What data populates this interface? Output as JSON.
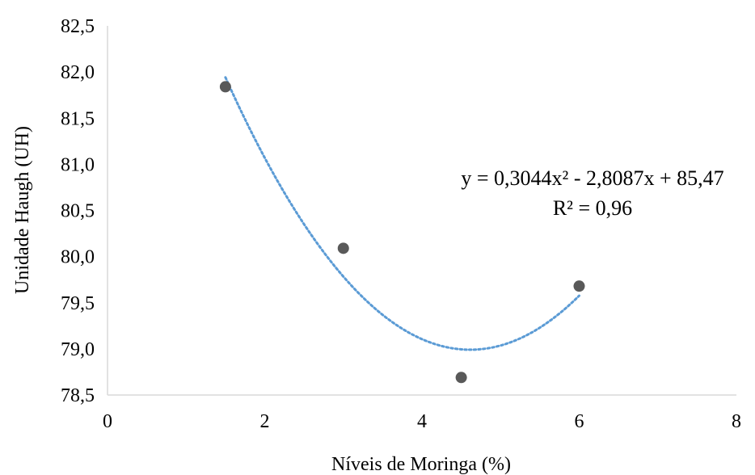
{
  "chart_data": {
    "type": "scatter",
    "title": "",
    "xlabel": "Níveis de Moringa (%)",
    "ylabel": "Unidade Haugh (UH)",
    "xlim": [
      0,
      8
    ],
    "ylim": [
      78.5,
      82.5
    ],
    "x_ticks": [
      "0",
      "2",
      "4",
      "6",
      "8"
    ],
    "y_ticks": [
      "78,5",
      "79,0",
      "79,5",
      "80,0",
      "80,5",
      "81,0",
      "81,5",
      "82,0",
      "82,5"
    ],
    "grid": false,
    "series": [
      {
        "points": [
          {
            "x": 1.5,
            "y": 81.84
          },
          {
            "x": 3.0,
            "y": 80.09
          },
          {
            "x": 4.5,
            "y": 78.69
          },
          {
            "x": 6.0,
            "y": 79.68
          }
        ],
        "color": "#595959"
      }
    ],
    "trendline": {
      "kind": "polynomial",
      "coefficients": [
        0.3044,
        -2.8087,
        85.47
      ],
      "x_range": [
        1.5,
        6.0
      ],
      "color": "#5b9bd5",
      "equation_label": "y = 0,3044x² - 2,8087x + 85,47",
      "r2_label": "R² = 0,96"
    }
  }
}
